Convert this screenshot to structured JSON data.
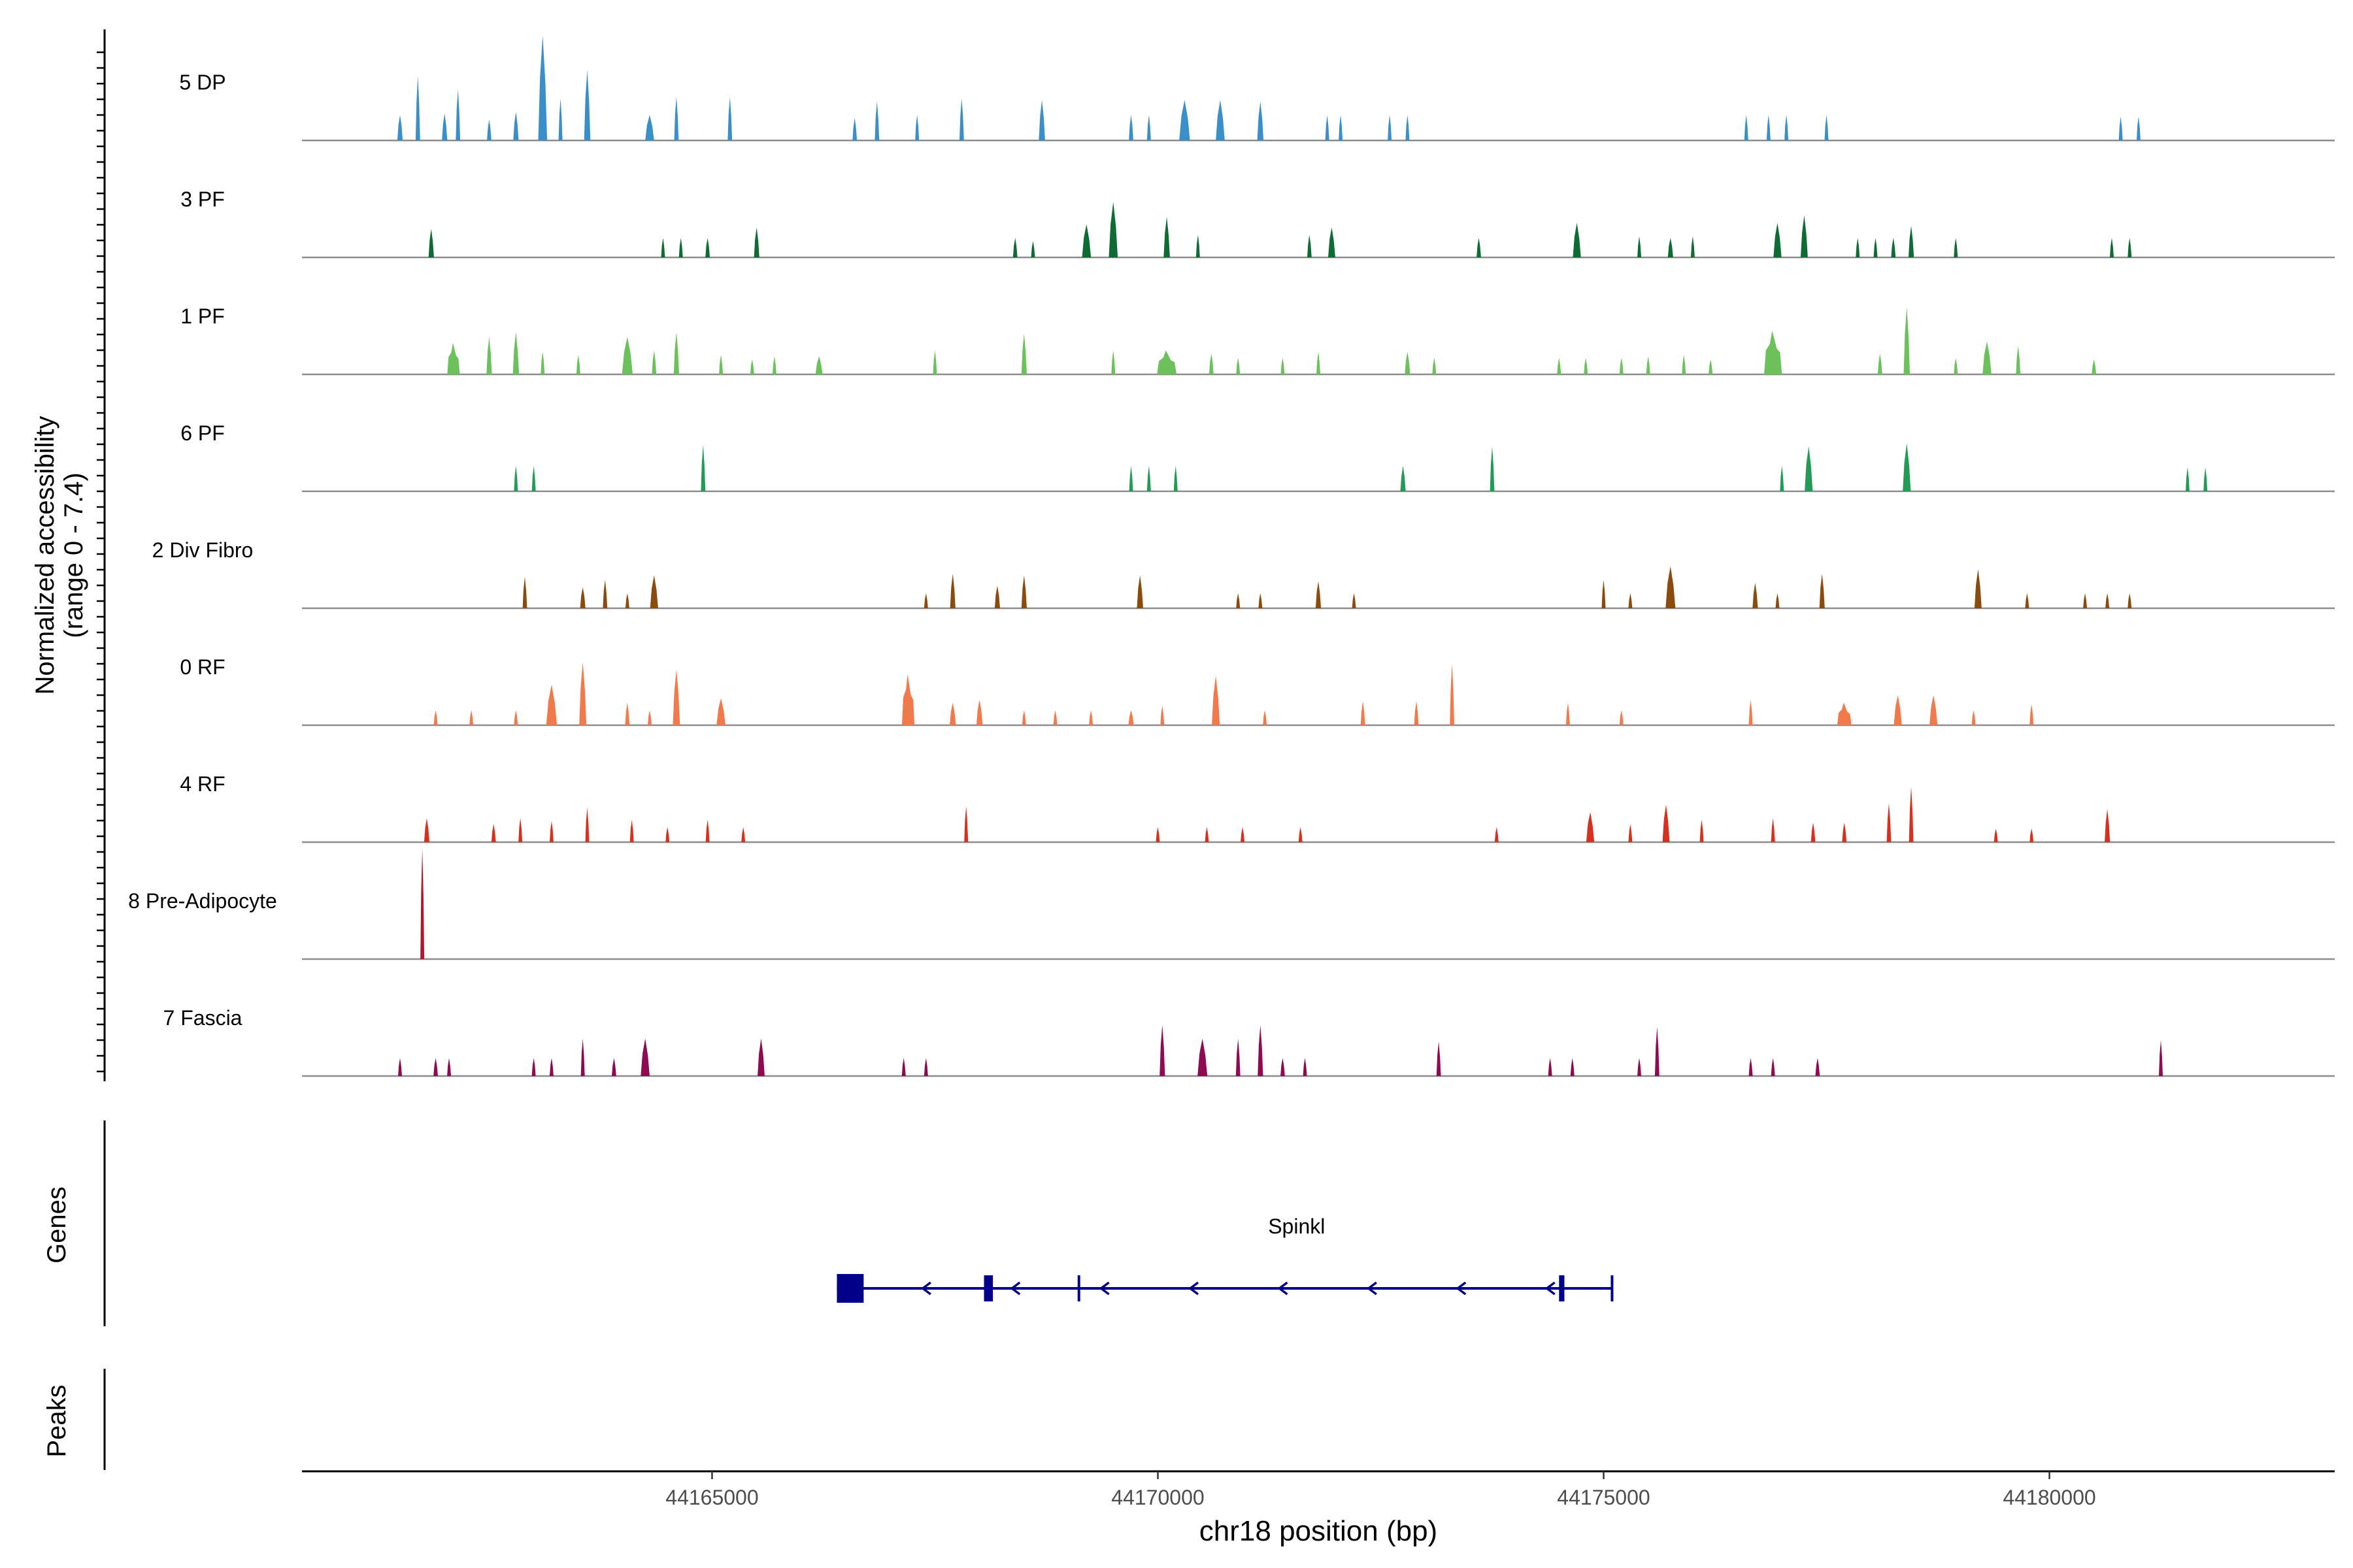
{
  "chart_data": {
    "type": "area",
    "subtype": "genome-browser coverage tracks",
    "y_axis_label": "Normalized accessibility",
    "y_axis_range_label": "(range 0 - 7.4)",
    "ylim": [
      0,
      7.4
    ],
    "x_axis_label": "chr18 position (bp)",
    "xlim": [
      44160400,
      44183200
    ],
    "x_ticks": [
      44165000,
      44170000,
      44175000,
      44180000
    ],
    "genes_panel_label": "Genes",
    "peaks_panel_label": "Peaks",
    "tracks": [
      {
        "name": "5 DP",
        "color": "#3a8fc8",
        "peaks": [
          [
            44161500,
            0.06,
            1.7
          ],
          [
            44161700,
            0.05,
            4.3
          ],
          [
            44162000,
            0.06,
            1.8
          ],
          [
            44162150,
            0.05,
            3.4
          ],
          [
            44162500,
            0.05,
            1.4
          ],
          [
            44162800,
            0.06,
            1.9
          ],
          [
            44163100,
            0.1,
            7.0
          ],
          [
            44163300,
            0.04,
            2.8
          ],
          [
            44163600,
            0.07,
            4.7
          ],
          [
            44164300,
            0.1,
            1.7
          ],
          [
            44164600,
            0.05,
            2.9
          ],
          [
            44165200,
            0.05,
            2.9
          ],
          [
            44166600,
            0.05,
            1.5
          ],
          [
            44166850,
            0.05,
            2.6
          ],
          [
            44167300,
            0.04,
            1.7
          ],
          [
            44167800,
            0.05,
            2.8
          ],
          [
            44168700,
            0.07,
            2.7
          ],
          [
            44169700,
            0.05,
            1.7
          ],
          [
            44169900,
            0.04,
            1.7
          ],
          [
            44170300,
            0.12,
            2.7
          ],
          [
            44170700,
            0.1,
            2.7
          ],
          [
            44171150,
            0.07,
            2.6
          ],
          [
            44171900,
            0.04,
            1.7
          ],
          [
            44172050,
            0.04,
            1.7
          ],
          [
            44172600,
            0.04,
            1.7
          ],
          [
            44172800,
            0.04,
            1.7
          ],
          [
            44176600,
            0.04,
            1.7
          ],
          [
            44176850,
            0.04,
            1.7
          ],
          [
            44177050,
            0.04,
            1.7
          ],
          [
            44177500,
            0.04,
            1.7
          ],
          [
            44180800,
            0.04,
            1.6
          ],
          [
            44181000,
            0.04,
            1.6
          ]
        ]
      },
      {
        "name": "3 PF",
        "color": "#0d6b33",
        "peaks": [
          [
            44161850,
            0.06,
            1.9
          ],
          [
            44164450,
            0.04,
            1.3
          ],
          [
            44164650,
            0.04,
            1.3
          ],
          [
            44164950,
            0.05,
            1.3
          ],
          [
            44165500,
            0.06,
            2.0
          ],
          [
            44168400,
            0.05,
            1.3
          ],
          [
            44168600,
            0.04,
            1.1
          ],
          [
            44169200,
            0.1,
            2.2
          ],
          [
            44169500,
            0.1,
            3.7
          ],
          [
            44170100,
            0.07,
            2.7
          ],
          [
            44170450,
            0.04,
            1.5
          ],
          [
            44171700,
            0.05,
            1.5
          ],
          [
            44171950,
            0.08,
            2.0
          ],
          [
            44173600,
            0.05,
            1.3
          ],
          [
            44174700,
            0.09,
            2.3
          ],
          [
            44175400,
            0.04,
            1.4
          ],
          [
            44175750,
            0.06,
            1.3
          ],
          [
            44176000,
            0.04,
            1.4
          ],
          [
            44176950,
            0.09,
            2.3
          ],
          [
            44177250,
            0.08,
            2.8
          ],
          [
            44177850,
            0.04,
            1.3
          ],
          [
            44178050,
            0.04,
            1.3
          ],
          [
            44178250,
            0.05,
            1.3
          ],
          [
            44178450,
            0.06,
            2.1
          ],
          [
            44178950,
            0.04,
            1.3
          ],
          [
            44180700,
            0.04,
            1.3
          ],
          [
            44180900,
            0.04,
            1.3
          ]
        ]
      },
      {
        "name": "1 PF",
        "color": "#6cc15d",
        "peaks": [
          [
            44162100,
            0.14,
            2.1
          ],
          [
            44162500,
            0.06,
            2.5
          ],
          [
            44162800,
            0.07,
            2.8
          ],
          [
            44163100,
            0.04,
            1.5
          ],
          [
            44163500,
            0.04,
            1.3
          ],
          [
            44164050,
            0.12,
            2.5
          ],
          [
            44164350,
            0.05,
            1.6
          ],
          [
            44164600,
            0.06,
            2.8
          ],
          [
            44165100,
            0.04,
            1.3
          ],
          [
            44165450,
            0.04,
            1.0
          ],
          [
            44165700,
            0.04,
            1.2
          ],
          [
            44166200,
            0.08,
            1.2
          ],
          [
            44167500,
            0.04,
            1.6
          ],
          [
            44168500,
            0.06,
            2.7
          ],
          [
            44169500,
            0.04,
            1.6
          ],
          [
            44170100,
            0.22,
            1.6
          ],
          [
            44170600,
            0.05,
            1.4
          ],
          [
            44170900,
            0.04,
            1.1
          ],
          [
            44171400,
            0.04,
            1.1
          ],
          [
            44171800,
            0.04,
            1.5
          ],
          [
            44172800,
            0.06,
            1.5
          ],
          [
            44173100,
            0.04,
            1.1
          ],
          [
            44174500,
            0.04,
            1.1
          ],
          [
            44174800,
            0.04,
            1.1
          ],
          [
            44175200,
            0.04,
            1.1
          ],
          [
            44175500,
            0.04,
            1.2
          ],
          [
            44175900,
            0.04,
            1.3
          ],
          [
            44176200,
            0.04,
            1.0
          ],
          [
            44176900,
            0.2,
            2.9
          ],
          [
            44178100,
            0.05,
            1.4
          ],
          [
            44178400,
            0.07,
            4.5
          ],
          [
            44178950,
            0.04,
            1.1
          ],
          [
            44179300,
            0.1,
            2.2
          ],
          [
            44179650,
            0.05,
            1.9
          ],
          [
            44180500,
            0.05,
            1.0
          ]
        ]
      },
      {
        "name": "6 PF",
        "color": "#239a55",
        "peaks": [
          [
            44162800,
            0.04,
            1.7
          ],
          [
            44163000,
            0.03,
            1.7
          ],
          [
            44164900,
            0.05,
            3.1
          ],
          [
            44169700,
            0.04,
            1.7
          ],
          [
            44169900,
            0.04,
            1.7
          ],
          [
            44170200,
            0.04,
            1.7
          ],
          [
            44172750,
            0.06,
            1.7
          ],
          [
            44173750,
            0.05,
            3.0
          ],
          [
            44177000,
            0.04,
            1.7
          ],
          [
            44177300,
            0.09,
            3.0
          ],
          [
            44178400,
            0.09,
            3.2
          ],
          [
            44181550,
            0.04,
            1.6
          ],
          [
            44181750,
            0.04,
            1.6
          ]
        ]
      },
      {
        "name": "2 Div Fibro",
        "color": "#8a4b0e",
        "peaks": [
          [
            44162900,
            0.05,
            2.1
          ],
          [
            44163550,
            0.06,
            1.4
          ],
          [
            44163800,
            0.05,
            1.9
          ],
          [
            44164050,
            0.04,
            1.0
          ],
          [
            44164350,
            0.09,
            2.2
          ],
          [
            44167400,
            0.04,
            1.0
          ],
          [
            44167700,
            0.06,
            2.3
          ],
          [
            44168200,
            0.06,
            1.5
          ],
          [
            44168500,
            0.06,
            2.2
          ],
          [
            44169800,
            0.07,
            2.2
          ],
          [
            44170900,
            0.04,
            1.0
          ],
          [
            44171150,
            0.04,
            1.0
          ],
          [
            44171800,
            0.06,
            1.8
          ],
          [
            44172200,
            0.04,
            1.0
          ],
          [
            44175000,
            0.04,
            1.9
          ],
          [
            44175300,
            0.04,
            1.0
          ],
          [
            44175750,
            0.11,
            2.8
          ],
          [
            44176700,
            0.06,
            1.7
          ],
          [
            44176950,
            0.04,
            1.0
          ],
          [
            44177450,
            0.06,
            2.3
          ],
          [
            44179200,
            0.08,
            2.6
          ],
          [
            44179750,
            0.04,
            1.0
          ],
          [
            44180400,
            0.04,
            1.0
          ],
          [
            44180650,
            0.04,
            1.0
          ],
          [
            44180900,
            0.04,
            1.0
          ]
        ]
      },
      {
        "name": "0 RF",
        "color": "#f07a4c",
        "peaks": [
          [
            44161900,
            0.04,
            1.0
          ],
          [
            44162300,
            0.04,
            1.0
          ],
          [
            44162800,
            0.04,
            1.0
          ],
          [
            44163200,
            0.12,
            2.7
          ],
          [
            44163550,
            0.08,
            4.2
          ],
          [
            44164050,
            0.05,
            1.5
          ],
          [
            44164300,
            0.04,
            1.0
          ],
          [
            44164600,
            0.08,
            3.7
          ],
          [
            44165100,
            0.1,
            1.8
          ],
          [
            44167200,
            0.14,
            3.4
          ],
          [
            44167700,
            0.07,
            1.5
          ],
          [
            44168000,
            0.07,
            1.7
          ],
          [
            44168500,
            0.04,
            1.0
          ],
          [
            44168850,
            0.04,
            1.0
          ],
          [
            44169250,
            0.04,
            1.0
          ],
          [
            44169700,
            0.06,
            1.0
          ],
          [
            44170050,
            0.04,
            1.3
          ],
          [
            44170650,
            0.09,
            3.3
          ],
          [
            44171200,
            0.04,
            1.0
          ],
          [
            44172300,
            0.05,
            1.6
          ],
          [
            44172900,
            0.05,
            1.6
          ],
          [
            44173300,
            0.05,
            4.1
          ],
          [
            44174600,
            0.04,
            1.5
          ],
          [
            44175200,
            0.04,
            1.0
          ],
          [
            44176650,
            0.04,
            1.7
          ],
          [
            44177700,
            0.16,
            1.5
          ],
          [
            44178300,
            0.09,
            2.0
          ],
          [
            44178700,
            0.09,
            2.0
          ],
          [
            44179150,
            0.04,
            1.0
          ],
          [
            44179800,
            0.04,
            1.4
          ]
        ]
      },
      {
        "name": "4 RF",
        "color": "#d7301f",
        "peaks": [
          [
            44161800,
            0.06,
            1.6
          ],
          [
            44162550,
            0.05,
            1.2
          ],
          [
            44162850,
            0.04,
            1.6
          ],
          [
            44163200,
            0.04,
            1.4
          ],
          [
            44163600,
            0.04,
            2.3
          ],
          [
            44164100,
            0.04,
            1.5
          ],
          [
            44164500,
            0.04,
            1.0
          ],
          [
            44164950,
            0.04,
            1.5
          ],
          [
            44165350,
            0.04,
            1.0
          ],
          [
            44167850,
            0.04,
            2.4
          ],
          [
            44170000,
            0.04,
            1.0
          ],
          [
            44170550,
            0.04,
            1.0
          ],
          [
            44170950,
            0.04,
            1.0
          ],
          [
            44171600,
            0.04,
            1.0
          ],
          [
            44173800,
            0.04,
            1.0
          ],
          [
            44174850,
            0.09,
            2.0
          ],
          [
            44175300,
            0.04,
            1.2
          ],
          [
            44175700,
            0.08,
            2.5
          ],
          [
            44176100,
            0.04,
            1.5
          ],
          [
            44176900,
            0.04,
            1.6
          ],
          [
            44177350,
            0.05,
            1.3
          ],
          [
            44177700,
            0.05,
            1.3
          ],
          [
            44178200,
            0.05,
            2.6
          ],
          [
            44178450,
            0.05,
            3.7
          ],
          [
            44179400,
            0.04,
            0.9
          ],
          [
            44179800,
            0.04,
            0.9
          ],
          [
            44180650,
            0.06,
            2.2
          ]
        ]
      },
      {
        "name": "8 Pre-Adipocyte",
        "color": "#b2182b",
        "peaks": [
          [
            44161750,
            0.02,
            7.4
          ]
        ]
      },
      {
        "name": "7 Fascia",
        "color": "#8e0a52",
        "peaks": [
          [
            44161500,
            0.03,
            1.2
          ],
          [
            44161900,
            0.05,
            1.2
          ],
          [
            44162050,
            0.03,
            1.2
          ],
          [
            44163000,
            0.03,
            1.2
          ],
          [
            44163200,
            0.03,
            1.2
          ],
          [
            44163550,
            0.04,
            2.5
          ],
          [
            44163900,
            0.05,
            1.2
          ],
          [
            44164250,
            0.1,
            2.5
          ],
          [
            44165550,
            0.08,
            2.5
          ],
          [
            44167150,
            0.03,
            1.2
          ],
          [
            44167400,
            0.03,
            1.2
          ],
          [
            44170050,
            0.06,
            3.4
          ],
          [
            44170500,
            0.11,
            2.5
          ],
          [
            44170900,
            0.05,
            2.5
          ],
          [
            44171150,
            0.06,
            3.4
          ],
          [
            44171400,
            0.05,
            1.2
          ],
          [
            44171650,
            0.03,
            1.2
          ],
          [
            44173150,
            0.05,
            2.3
          ],
          [
            44174400,
            0.03,
            1.2
          ],
          [
            44174650,
            0.03,
            1.2
          ],
          [
            44175400,
            0.03,
            1.2
          ],
          [
            44175600,
            0.05,
            3.3
          ],
          [
            44176650,
            0.03,
            1.2
          ],
          [
            44176900,
            0.03,
            1.2
          ],
          [
            44177400,
            0.05,
            1.2
          ],
          [
            44181250,
            0.04,
            2.4
          ]
        ]
      }
    ],
    "gene": {
      "name": "Spinkl",
      "color": "#00008b",
      "strand": "-",
      "start": 44166400,
      "end": 44175100,
      "exons": [
        [
          44166400,
          44166700
        ],
        [
          44168050,
          44168150
        ],
        [
          44169100,
          44169120
        ],
        [
          44174500,
          44174560
        ],
        [
          44175080,
          44175100
        ]
      ],
      "arrows": [
        44167400,
        44168400,
        44169400,
        44170400,
        44171400,
        44172400,
        44173400,
        44174400
      ]
    }
  }
}
